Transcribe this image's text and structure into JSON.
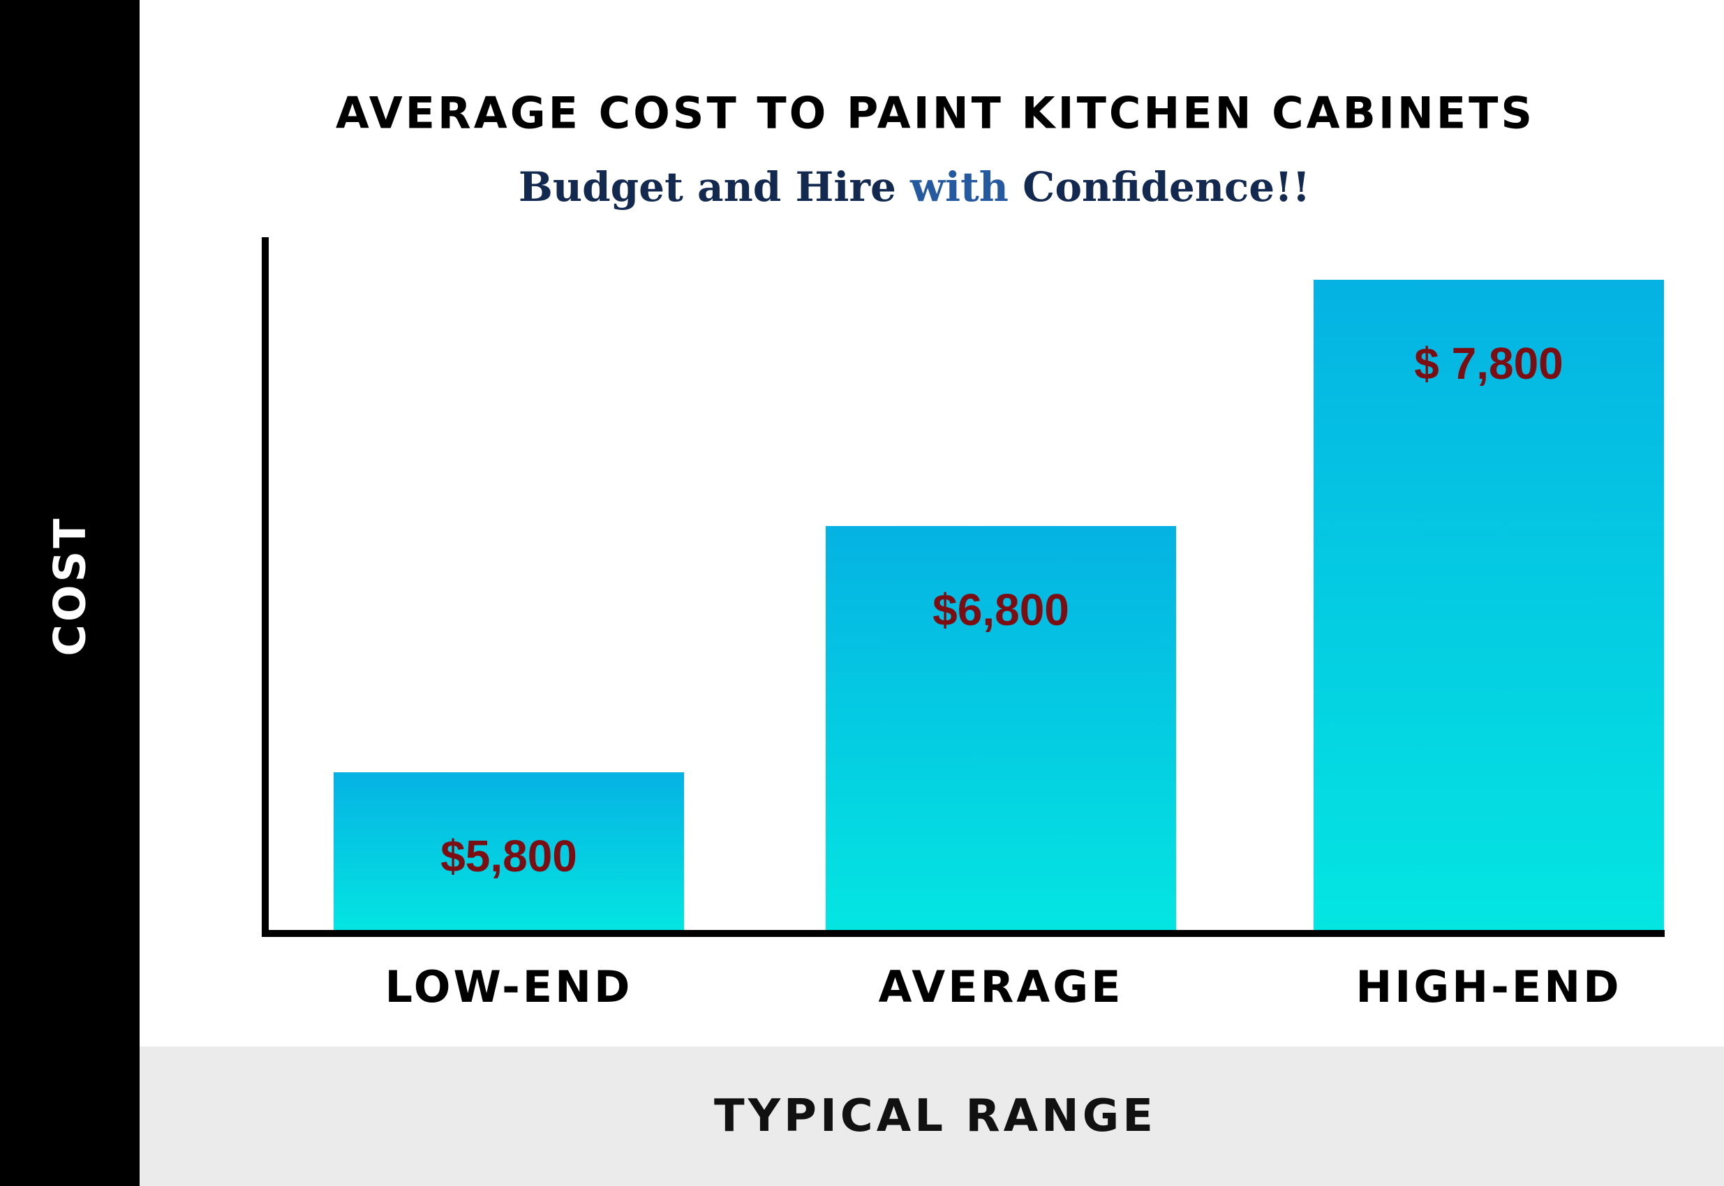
{
  "chart_data": {
    "type": "bar",
    "title": "AVERAGE COST TO PAINT KITCHEN CABINETS",
    "subtitle_parts": [
      "Budget and Hire ",
      "with ",
      "Confidence!!"
    ],
    "xlabel": "TYPICAL RANGE",
    "ylabel": "COST",
    "categories": [
      "LOW-END",
      "AVERAGE",
      "HIGH-END"
    ],
    "values": [
      5800,
      6800,
      7800
    ],
    "data_labels": [
      "$5,800",
      "$6,800",
      "$ 7,800"
    ],
    "ylim": [
      5000,
      8000
    ],
    "grid": false,
    "legend": "none"
  },
  "colors": {
    "bar_top": "#05b2e3",
    "bar_bottom": "#04e6e2",
    "data_label": "#7a0e12",
    "axis": "#000000",
    "left_bar": "#000000",
    "bottom_band": "#ebebeb"
  }
}
